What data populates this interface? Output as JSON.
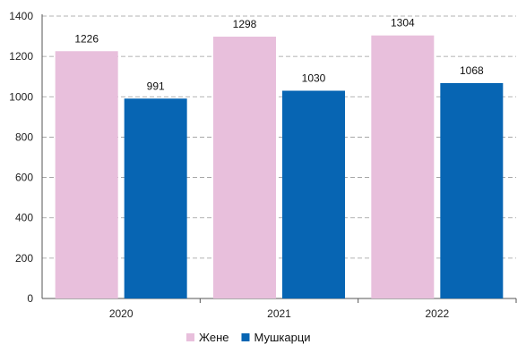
{
  "chart_data": {
    "type": "bar",
    "categories": [
      "2020",
      "2021",
      "2022"
    ],
    "series": [
      {
        "name": "Жене",
        "values": [
          1226,
          1298,
          1304
        ],
        "color": "#e8bfdc"
      },
      {
        "name": "Мушкарци",
        "values": [
          991,
          1030,
          1068
        ],
        "color": "#0765b3"
      }
    ],
    "ylim": [
      0,
      1400
    ],
    "yticks": [
      0,
      200,
      400,
      600,
      800,
      1000,
      1200,
      1400
    ],
    "grid": true,
    "grid_style": "dashed",
    "legend_position": "bottom-center",
    "data_labels": true
  }
}
